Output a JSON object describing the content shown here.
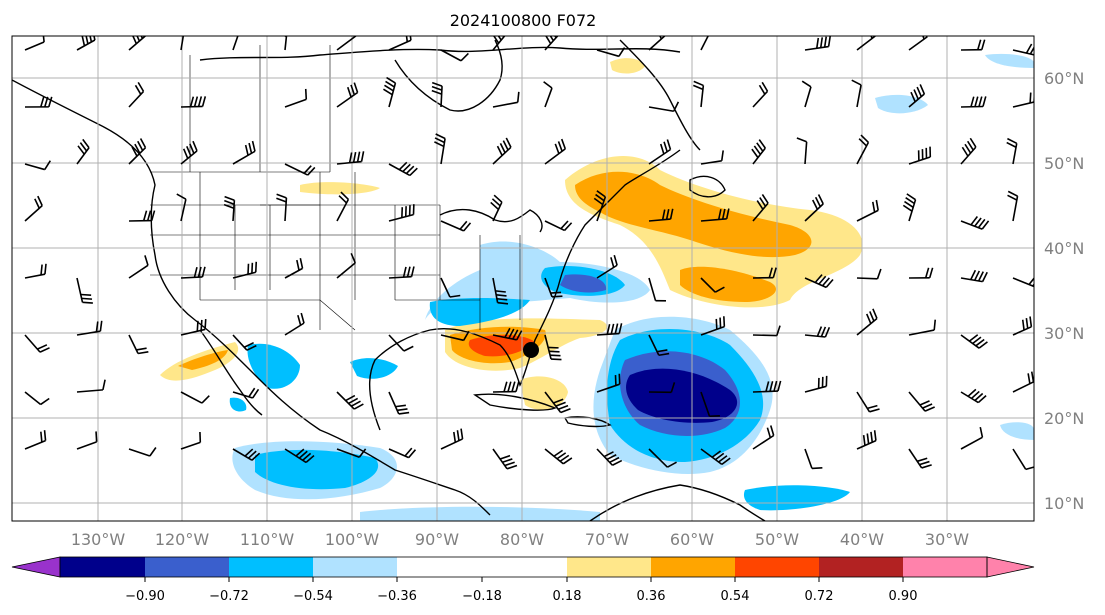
{
  "title": "2024100800 F072",
  "map": {
    "lon_labels": [
      "130°W",
      "120°W",
      "110°W",
      "100°W",
      "90°W",
      "80°W",
      "70°W",
      "60°W",
      "50°W",
      "40°W",
      "30°W"
    ],
    "lat_labels": [
      "60°N",
      "50°N",
      "40°N",
      "30°N",
      "20°N",
      "10°N"
    ],
    "grid": true,
    "projection": "lat-lon (cylindrical)"
  },
  "colorbar": {
    "ticks": [
      "−0.90",
      "−0.72",
      "−0.54",
      "−0.36",
      "−0.18",
      "0.18",
      "0.36",
      "0.54",
      "0.72",
      "0.90"
    ],
    "colors": [
      "#9932cc",
      "#00008b",
      "#3a5fcd",
      "#00bfff",
      "#b0e2ff",
      "#ffffff",
      "#ffe78a",
      "#ffa500",
      "#ff4500",
      "#b22222",
      "#ff82ab"
    ],
    "extend": "both"
  }
}
